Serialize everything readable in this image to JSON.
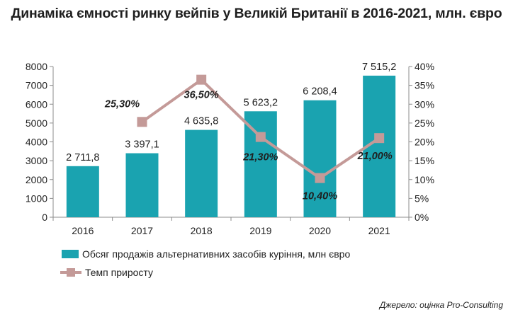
{
  "title": "Динаміка ємності ринку вейпів у Великій Британії в 2016-2021, млн. євро",
  "source": "Джерело: оцінка Pro-Consulting",
  "chart_data": {
    "type": "bar+line",
    "categories": [
      "2016",
      "2017",
      "2018",
      "2019",
      "2020",
      "2021"
    ],
    "series": [
      {
        "name": "Обсяг продажів альтернативних засобів куріння, млн євро",
        "type": "bar",
        "axis": "left",
        "values": [
          2711.8,
          3397.1,
          4635.8,
          5623.2,
          6208.4,
          7515.2
        ],
        "labels": [
          "2 711,8",
          "3 397,1",
          "4 635,8",
          "5 623,2",
          "6 208,4",
          "7 515,2"
        ],
        "color": "#1aa3b0"
      },
      {
        "name": "Темп приросту",
        "type": "line",
        "axis": "right",
        "values": [
          null,
          25.3,
          36.5,
          21.3,
          10.4,
          21.0
        ],
        "labels": [
          "",
          "25,30%",
          "36,50%",
          "21,30%",
          "10,40%",
          "21,00%"
        ],
        "color": "#c49a98"
      }
    ],
    "left_axis": {
      "ylim": [
        0,
        8000
      ],
      "ticks": [
        "0",
        "1000",
        "2000",
        "3000",
        "4000",
        "5000",
        "6000",
        "7000",
        "8000"
      ]
    },
    "right_axis": {
      "ylim": [
        0,
        40
      ],
      "ticks": [
        "0%",
        "5%",
        "10%",
        "15%",
        "20%",
        "25%",
        "30%",
        "35%",
        "40%"
      ]
    },
    "legend_position": "bottom-left",
    "grid": false
  }
}
